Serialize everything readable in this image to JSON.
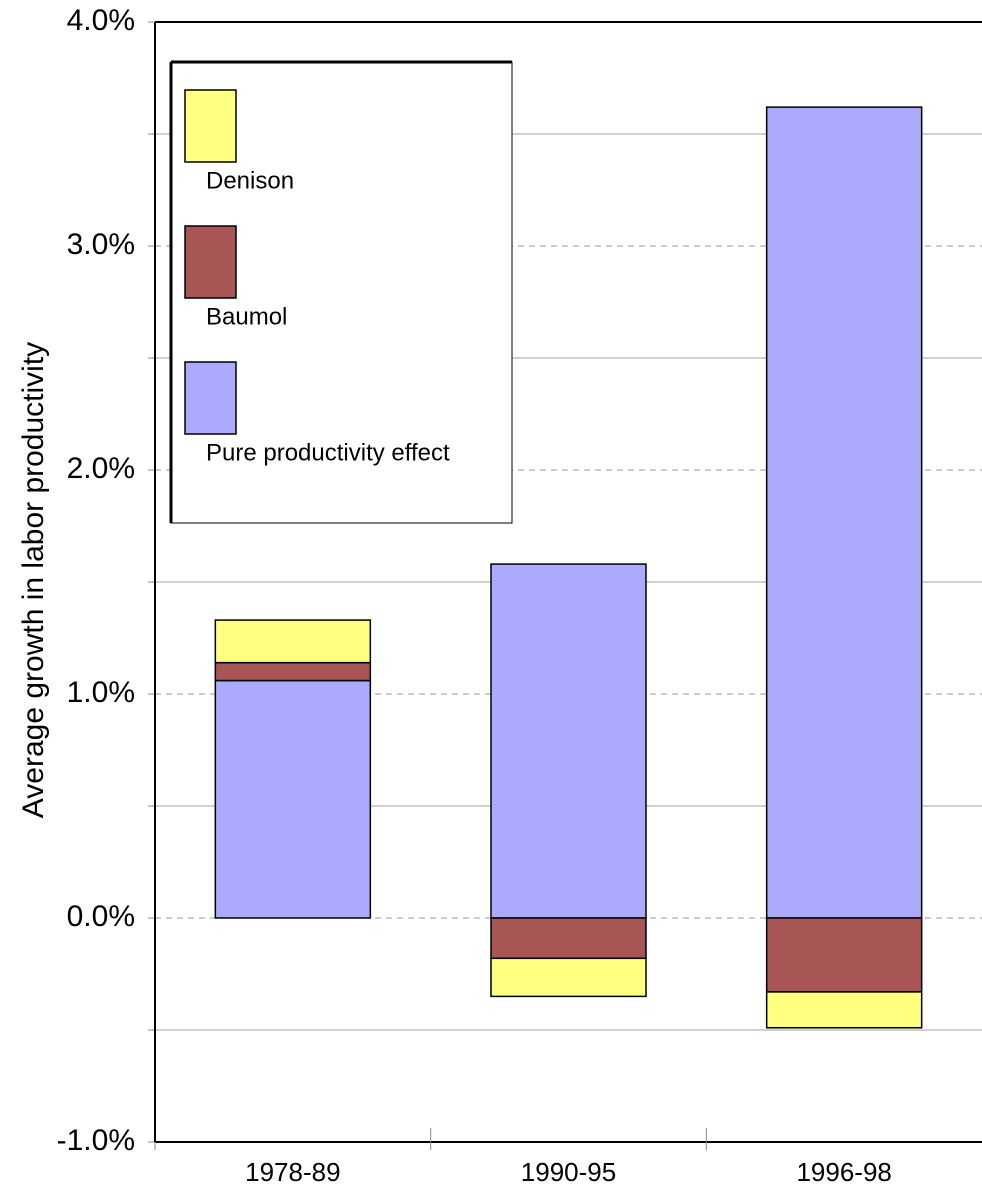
{
  "chart_data": {
    "type": "stacked_bar",
    "y_label": "Average growth in labor productivity",
    "categories": [
      "1978-89",
      "1990-95",
      "1996-98"
    ],
    "series": [
      {
        "name": "Denison",
        "color": "#ffff80",
        "values": [
          0.19,
          -0.17,
          -0.16
        ]
      },
      {
        "name": "Baumol",
        "color": "#a85555",
        "values": [
          0.08,
          -0.18,
          -0.33
        ]
      },
      {
        "name": "Pure productivity effect",
        "color": "#aaaaff",
        "values": [
          1.06,
          1.58,
          3.62
        ]
      }
    ],
    "ylim": [
      -1,
      4
    ],
    "yticks": [
      {
        "value": -1,
        "label": "-1.0%"
      },
      {
        "value": 0,
        "label": "0.0%"
      },
      {
        "value": 1,
        "label": "1.0%"
      },
      {
        "value": 2,
        "label": "2.0%"
      },
      {
        "value": 3,
        "label": "3.0%"
      },
      {
        "value": 4,
        "label": "4.0%"
      }
    ],
    "minor_yticks": [
      -0.5,
      0.5,
      1.5,
      2.5,
      3.5
    ],
    "grid": true,
    "legend": "upper-left"
  }
}
